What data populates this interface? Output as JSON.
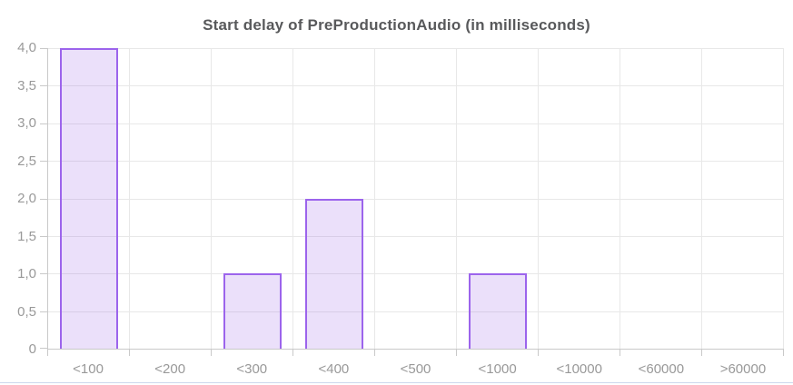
{
  "chart_data": {
    "type": "bar",
    "title": "Start delay of PreProductionAudio (in milliseconds)",
    "categories": [
      "<100",
      "<200",
      "<300",
      "<400",
      "<500",
      "<1000",
      "<10000",
      "<60000",
      ">60000"
    ],
    "values": [
      4,
      0,
      1,
      2,
      0,
      1,
      0,
      0,
      0
    ],
    "xlabel": "",
    "ylabel": "",
    "ylim": [
      0,
      4
    ],
    "y_tick_step": 0.5,
    "y_tick_labels": [
      "0",
      "0,5",
      "1,0",
      "1,5",
      "2,0",
      "2,5",
      "3,0",
      "3,5",
      "4,0"
    ],
    "decimal_separator": ",",
    "grid": true,
    "legend_position": "none",
    "colors": {
      "bar_border": "#9c64ec",
      "bar_fill": "rgba(154, 100, 230, 0.2)",
      "gridline": "#e8e8e8",
      "axis_line": "#c9c9c9",
      "tick_label": "#999999",
      "title": "#58595b",
      "page_divider": "#ccd8ec"
    }
  }
}
